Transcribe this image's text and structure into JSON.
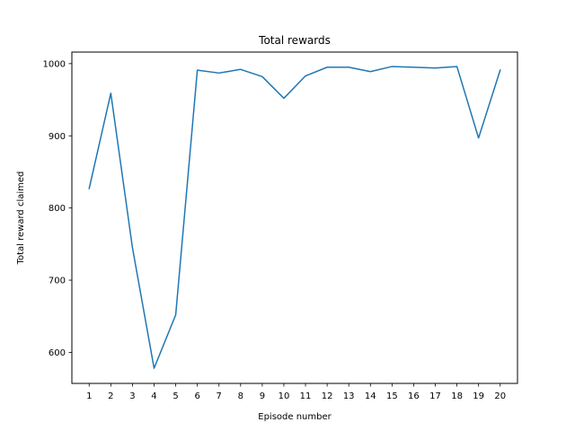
{
  "chart_data": {
    "type": "line",
    "title": "Total rewards",
    "xlabel": "Episode number",
    "ylabel": "Total reward claimed",
    "x": [
      1,
      2,
      3,
      4,
      5,
      6,
      7,
      8,
      9,
      10,
      11,
      12,
      13,
      14,
      15,
      16,
      17,
      18,
      19,
      20
    ],
    "series": [
      {
        "values": [
          827,
          959,
          745,
          578,
          652,
          991,
          987,
          992,
          982,
          952,
          983,
          995,
          995,
          989,
          996,
          995,
          994,
          996,
          897,
          991
        ],
        "color": "#1f77b4"
      }
    ],
    "xlim": [
      0.2,
      20.8
    ],
    "ylim": [
      557,
      1016
    ],
    "xticks": [
      "1",
      "2",
      "3",
      "4",
      "5",
      "6",
      "7",
      "8",
      "9",
      "10",
      "11",
      "12",
      "13",
      "14",
      "15",
      "16",
      "17",
      "18",
      "19",
      "20"
    ],
    "yticks": [
      600,
      700,
      800,
      900,
      1000
    ],
    "ytick_labels": [
      "600",
      "700",
      "800",
      "900",
      "1000"
    ],
    "grid": false,
    "legend": "none"
  }
}
